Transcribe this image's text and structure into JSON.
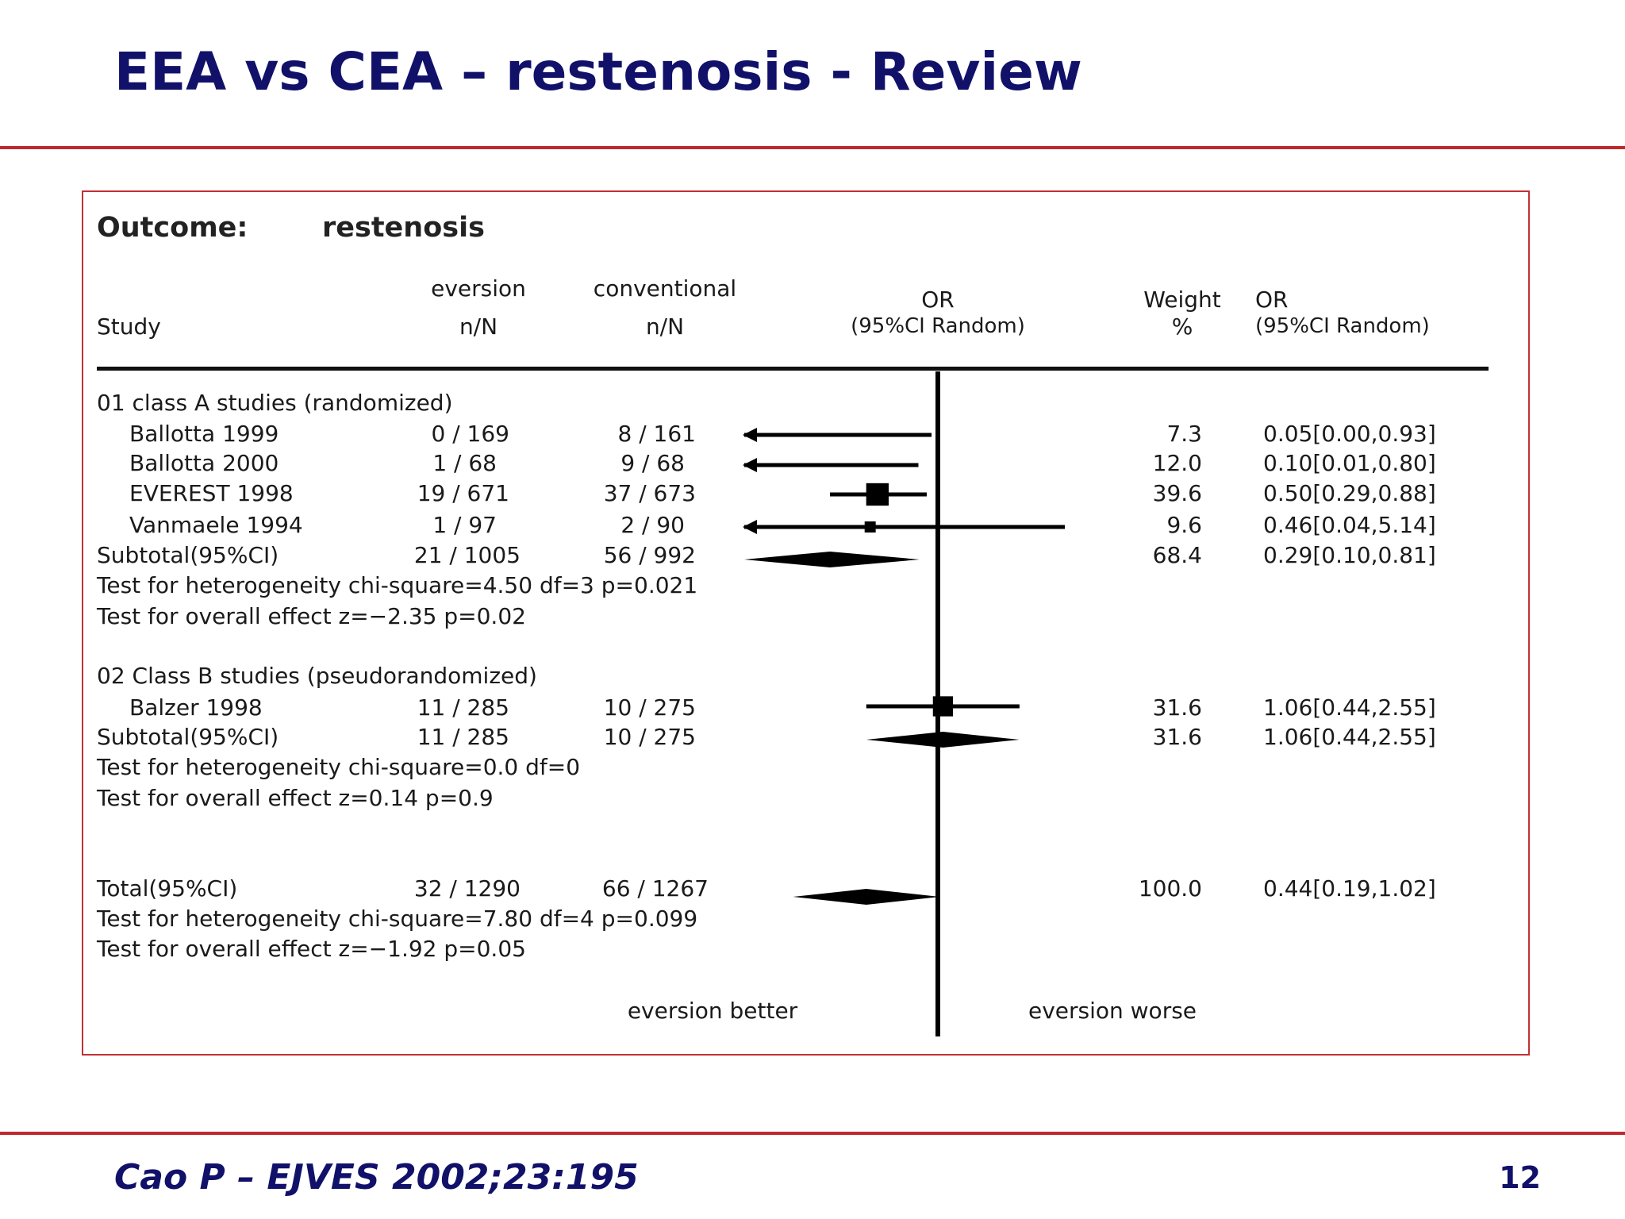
{
  "slide": {
    "title": "EEA vs CEA – restenosis - Review",
    "citation": "Cao P – EJVES 2002;23:195",
    "page_number": "12"
  },
  "colors": {
    "title": "#11116a",
    "rule": "#c0282e",
    "frame": "#c23035"
  },
  "chart_data": {
    "type": "forest",
    "outcome_label": "Outcome:",
    "outcome": "restenosis",
    "headers": {
      "study": "Study",
      "eversion_top": "eversion",
      "eversion_bottom": "n/N",
      "conventional_top": "conventional",
      "conventional_bottom": "n/N",
      "or_plot_top": "OR",
      "or_plot_bottom": "(95%CI Random)",
      "weight_top": "Weight",
      "weight_bottom": "%",
      "or_text_top": "OR",
      "or_text_bottom": "(95%CI Random)"
    },
    "scale": "log",
    "reference_line": 1,
    "groups": [
      {
        "label": "01 class A studies (randomized)",
        "studies": [
          {
            "name": "Ballotta 1999",
            "eversion": "0 / 169",
            "conventional": "8 / 161",
            "weight": "7.3",
            "or_text": "0.05[0.00,0.93]",
            "or": 0.05,
            "lo": 0.0,
            "hi": 0.93,
            "arrow_left": true
          },
          {
            "name": "Ballotta 2000",
            "eversion": "1 / 68",
            "conventional": "9 / 68",
            "weight": "12.0",
            "or_text": "0.10[0.01,0.80]",
            "or": 0.1,
            "lo": 0.01,
            "hi": 0.8,
            "arrow_left": true
          },
          {
            "name": "EVEREST 1998",
            "eversion": "19 / 671",
            "conventional": "37 / 673",
            "weight": "39.6",
            "or_text": "0.50[0.29,0.88]",
            "or": 0.5,
            "lo": 0.29,
            "hi": 0.88,
            "arrow_left": false
          },
          {
            "name": "Vanmaele 1994",
            "eversion": "1 / 97",
            "conventional": "2 / 90",
            "weight": "9.6",
            "or_text": "0.46[0.04,5.14]",
            "or": 0.46,
            "lo": 0.04,
            "hi": 5.14,
            "arrow_left": true
          }
        ],
        "subtotal": {
          "label": "Subtotal(95%CI)",
          "eversion": "21 / 1005",
          "conventional": "56 / 992",
          "weight": "68.4",
          "or_text": "0.29[0.10,0.81]",
          "or": 0.29,
          "lo": 0.1,
          "hi": 0.81
        },
        "heterogeneity": "Test for heterogeneity  chi-square=4.50  df=3  p=0.021",
        "overall": "Test for overall effect  z=−2.35  p=0.02"
      },
      {
        "label": "02 Class B studies (pseudorandomized)",
        "studies": [
          {
            "name": "Balzer 1998",
            "eversion": "11 / 285",
            "conventional": "10 / 275",
            "weight": "31.6",
            "or_text": "1.06[0.44,2.55]",
            "or": 1.06,
            "lo": 0.44,
            "hi": 2.55,
            "arrow_left": false
          }
        ],
        "subtotal": {
          "label": "Subtotal(95%CI)",
          "eversion": "11 / 285",
          "conventional": "10 / 275",
          "weight": "31.6",
          "or_text": "1.06[0.44,2.55]",
          "or": 1.06,
          "lo": 0.44,
          "hi": 2.55
        },
        "heterogeneity": "Test for heterogeneity  chi-square=0.0  df=0",
        "overall": "Test for overall effect  z=0.14  p=0.9"
      }
    ],
    "total": {
      "label": "Total(95%CI)",
      "eversion": "32 / 1290",
      "conventional": "66 / 1267",
      "weight": "100.0",
      "or_text": "0.44[0.19,1.02]",
      "or": 0.44,
      "lo": 0.19,
      "hi": 1.02,
      "heterogeneity": "Test for heterogeneity  chi-square=7.80  df=4  p=0.099",
      "overall": "Test for overall effect  z=−1.92  p=0.05"
    },
    "footer_left": "eversion better",
    "footer_right": "eversion worse"
  }
}
